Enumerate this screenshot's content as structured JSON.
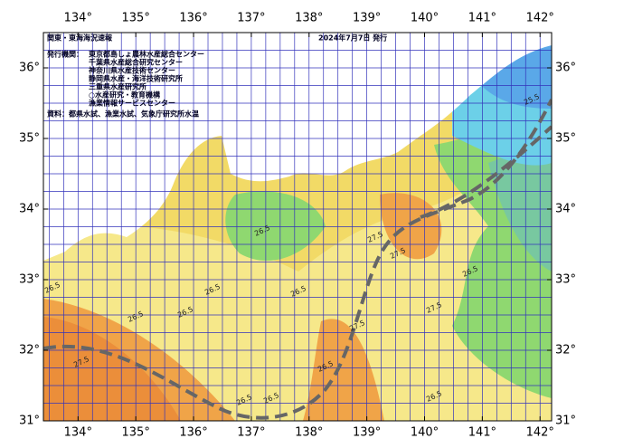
{
  "header": {
    "title": "関東・東海海況速報",
    "date": "2024年7月7日 発行"
  },
  "publishers": {
    "label": "発行機関：",
    "items": [
      "東京都島しょ農林水産総合センター",
      "千葉県水産総合研究センター",
      "神奈川県水産技術センター",
      "静岡県水産・海洋技術研究所",
      "三重県水産研究所",
      "○水産研究・教育機構",
      "漁業情報サービスセンター"
    ]
  },
  "source": "資料：都県水試、漁業水試、気象庁研究所水温",
  "map": {
    "xlim": [
      133.4,
      142.2
    ],
    "ylim": [
      31,
      36.5
    ],
    "lon_ticks": [
      {
        "value": 134,
        "label": "134°"
      },
      {
        "value": 135,
        "label": "135°"
      },
      {
        "value": 136,
        "label": "136°"
      },
      {
        "value": 137,
        "label": "137°"
      },
      {
        "value": 138,
        "label": "138°"
      },
      {
        "value": 139,
        "label": "139°"
      },
      {
        "value": 140,
        "label": "140°"
      },
      {
        "value": 141,
        "label": "141°"
      },
      {
        "value": 142,
        "label": "142°"
      }
    ],
    "lat_ticks": [
      {
        "value": 31,
        "label": "31°"
      },
      {
        "value": 32,
        "label": "32°"
      },
      {
        "value": 33,
        "label": "33°"
      },
      {
        "value": 34,
        "label": "34°"
      },
      {
        "value": 35,
        "label": "35°"
      },
      {
        "value": 36,
        "label": "36°"
      }
    ],
    "contour_labels": [
      "26.5",
      "26.5",
      "27.5",
      "26.5",
      "26.5",
      "27.5",
      "26.5",
      "27.5",
      "26.5",
      "26.5",
      "27.5",
      "26.5",
      "26.5",
      "26.5",
      "27.5",
      "26.5",
      "25.5"
    ]
  }
}
